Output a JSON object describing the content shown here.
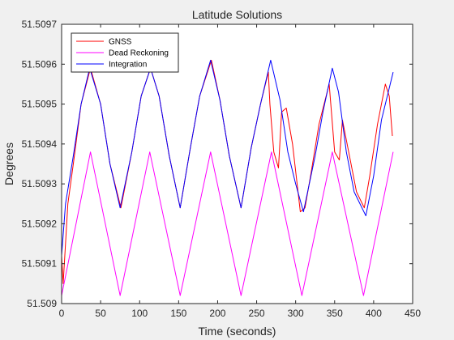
{
  "chart_data": {
    "type": "line",
    "title": "Latitude Solutions",
    "xlabel": "Time (seconds)",
    "ylabel": "Degrees",
    "xlim": [
      0,
      450
    ],
    "ylim": [
      51.509,
      51.5097
    ],
    "xticks": [
      0,
      50,
      100,
      150,
      200,
      250,
      300,
      350,
      400,
      450
    ],
    "xtick_labels": [
      "0",
      "50",
      "100",
      "150",
      "200",
      "250",
      "300",
      "350",
      "400",
      "450"
    ],
    "yticks": [
      51.509,
      51.5091,
      51.5092,
      51.5093,
      51.5094,
      51.5095,
      51.5096,
      51.5097
    ],
    "ytick_labels": [
      "51.509",
      "51.5091",
      "51.5092",
      "51.5093",
      "51.5094",
      "51.5095",
      "51.5096",
      "51.5097"
    ],
    "grid": false,
    "legend_position": "top-left",
    "series": [
      {
        "name": "GNSS",
        "color": "#ff0000",
        "x": [
          0,
          2,
          8,
          15,
          25,
          37,
          50,
          62,
          76,
          90,
          102,
          114,
          125,
          138,
          152,
          165,
          177,
          192,
          203,
          215,
          230,
          243,
          255,
          265,
          267,
          272,
          278,
          282,
          288,
          296,
          306,
          312,
          320,
          330,
          343,
          350,
          356,
          360,
          368,
          378,
          388,
          395,
          405,
          415,
          420,
          424
        ],
        "y": [
          51.50912,
          51.50905,
          51.50925,
          51.50935,
          51.5095,
          51.50959,
          51.5095,
          51.50935,
          51.50924,
          51.50938,
          51.50952,
          51.50959,
          51.50952,
          51.50937,
          51.50924,
          51.50939,
          51.50952,
          51.50961,
          51.50951,
          51.50937,
          51.50924,
          51.50939,
          51.5095,
          51.50958,
          51.5095,
          51.50938,
          51.50934,
          51.50948,
          51.50949,
          51.5094,
          51.50923,
          51.50924,
          51.50933,
          51.50945,
          51.50955,
          51.50938,
          51.50936,
          51.50946,
          51.50938,
          51.50928,
          51.50924,
          51.50932,
          51.50945,
          51.50955,
          51.50952,
          51.50942
        ]
      },
      {
        "name": "Dead Reckoning",
        "color": "#ff00ff",
        "x": [
          0,
          37,
          75,
          113,
          152,
          191,
          230,
          269,
          308,
          347,
          387,
          425
        ],
        "y": [
          51.50902,
          51.50938,
          51.50902,
          51.50938,
          51.50902,
          51.50938,
          51.50902,
          51.50938,
          51.50902,
          51.50938,
          51.50902,
          51.50938
        ]
      },
      {
        "name": "Integration",
        "color": "#0000ff",
        "x": [
          0,
          5,
          15,
          25,
          36,
          50,
          62,
          75,
          90,
          102,
          114,
          125,
          138,
          152,
          165,
          177,
          191,
          203,
          215,
          230,
          243,
          255,
          268,
          280,
          290,
          300,
          310,
          325,
          335,
          347,
          355,
          365,
          375,
          390,
          400,
          410,
          425
        ],
        "y": [
          51.50912,
          51.50925,
          51.50937,
          51.5095,
          51.50959,
          51.5095,
          51.50935,
          51.50924,
          51.50938,
          51.50952,
          51.50959,
          51.50952,
          51.50937,
          51.50924,
          51.50939,
          51.50952,
          51.50961,
          51.50951,
          51.50937,
          51.50924,
          51.50939,
          51.5095,
          51.50961,
          51.50951,
          51.50938,
          51.5093,
          51.50923,
          51.50937,
          51.50948,
          51.50959,
          51.50953,
          51.50938,
          51.50928,
          51.50922,
          51.50932,
          51.50946,
          51.50958
        ]
      }
    ]
  }
}
